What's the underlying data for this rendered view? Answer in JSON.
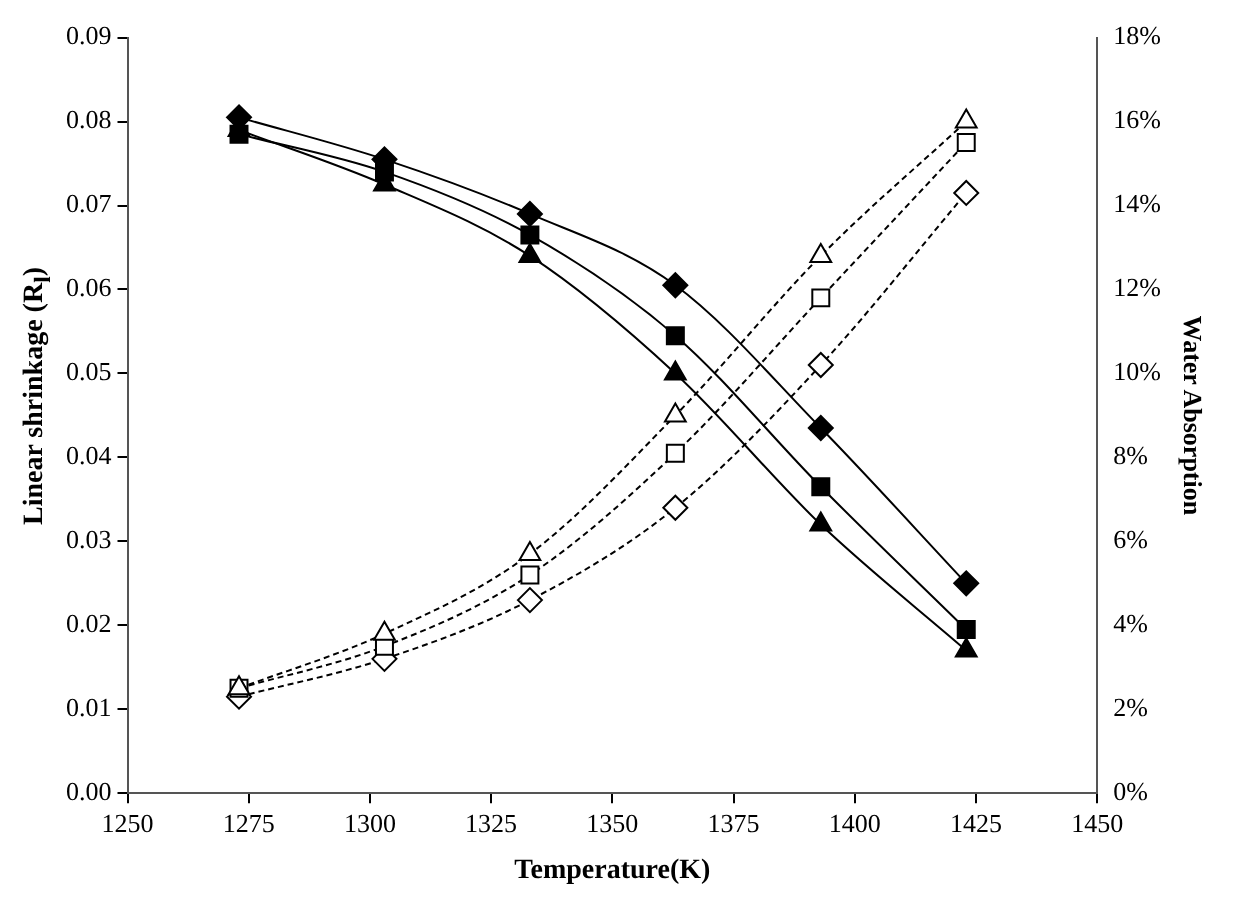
{
  "chart_data": {
    "type": "line",
    "xlabel": "Temperature(K)",
    "ylabel": "Linear shrinkage (R$_{l}$)",
    "y2label": "Water Absorption",
    "x": [
      1273,
      1303,
      1333,
      1363,
      1393,
      1423
    ],
    "xlim": [
      1250,
      1450
    ],
    "xticks": [
      1250,
      1275,
      1300,
      1325,
      1350,
      1375,
      1400,
      1425,
      1450
    ],
    "ylim": [
      0,
      0.09
    ],
    "yticks": [
      {
        "value": 0,
        "label": "0.00"
      },
      {
        "value": 0.01,
        "label": "0.01"
      },
      {
        "value": 0.02,
        "label": "0.02"
      },
      {
        "value": 0.03,
        "label": "0.03"
      },
      {
        "value": 0.04,
        "label": "0.04"
      },
      {
        "value": 0.05,
        "label": "0.05"
      },
      {
        "value": 0.06,
        "label": "0.06"
      },
      {
        "value": 0.07,
        "label": "0.07"
      },
      {
        "value": 0.08,
        "label": "0.08"
      },
      {
        "value": 0.09,
        "label": "0.09"
      }
    ],
    "y2lim": [
      0,
      18
    ],
    "y2ticks": [
      {
        "value": 0,
        "label": "0%"
      },
      {
        "value": 2,
        "label": "2%"
      },
      {
        "value": 4,
        "label": "4%"
      },
      {
        "value": 6,
        "label": "6%"
      },
      {
        "value": 8,
        "label": "8%"
      },
      {
        "value": 10,
        "label": "10%"
      },
      {
        "value": 12,
        "label": "12%"
      },
      {
        "value": 14,
        "label": "14%"
      },
      {
        "value": 16,
        "label": "16%"
      },
      {
        "value": 18,
        "label": "18%"
      }
    ],
    "grid": false,
    "legend": false,
    "series": [
      {
        "color": "#000000",
        "marker": "diamond",
        "line_style": "solid",
        "values": [
          0.0805,
          0.0755,
          0.069,
          0.0605,
          0.0435,
          0.025
        ]
      },
      {
        "color": "#000000",
        "marker": "square",
        "line_style": "solid",
        "values": [
          0.0785,
          0.074,
          0.0665,
          0.0545,
          0.0365,
          0.0195
        ]
      },
      {
        "color": "#000000",
        "marker": "triangle",
        "line_style": "solid",
        "values": [
          0.079,
          0.0725,
          0.064,
          0.05,
          0.032,
          0.017
        ]
      },
      {
        "color": "#000000",
        "marker": "triangle",
        "line_style": "dashed",
        "axis": "y2",
        "values": [
          2.5,
          3.8,
          5.7,
          9.0,
          12.8,
          16.0
        ]
      },
      {
        "color": "#000000",
        "marker": "square",
        "line_style": "dashed",
        "axis": "y2",
        "values": [
          2.5,
          3.5,
          5.2,
          8.1,
          11.8,
          15.5
        ]
      },
      {
        "color": "#000000",
        "marker": "diamond",
        "line_style": "dashed",
        "axis": "y2",
        "values": [
          2.3,
          3.2,
          4.6,
          6.8,
          10.2,
          14.3
        ]
      }
    ]
  }
}
